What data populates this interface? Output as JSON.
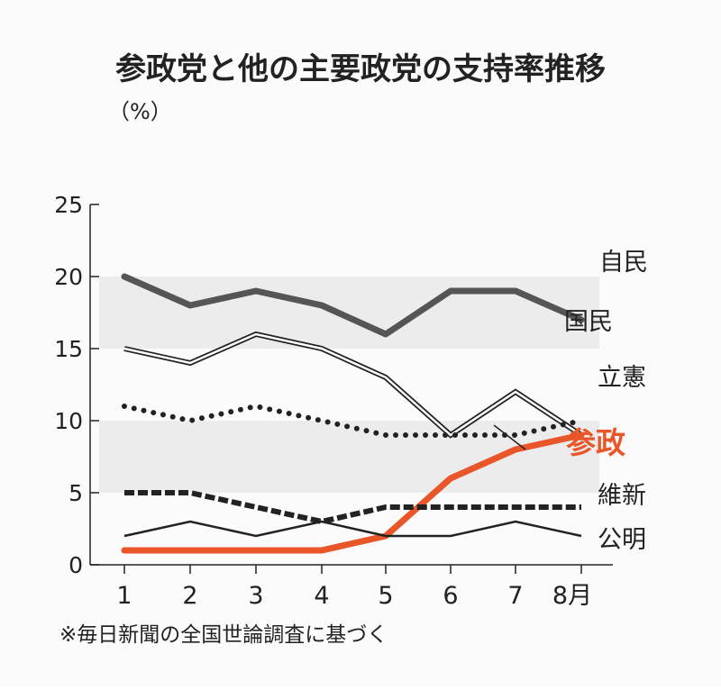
{
  "chart_data": {
    "type": "line",
    "title": "参政党と他の主要政党の支持率推移",
    "ylabel": "（%）",
    "xlabel": "",
    "x_unit": "月",
    "categories": [
      "1",
      "2",
      "3",
      "4",
      "5",
      "6",
      "7",
      "8月"
    ],
    "ylim": [
      0,
      25
    ],
    "yticks": [
      "0",
      "5",
      "10",
      "15",
      "20",
      "25"
    ],
    "bands": [
      [
        5,
        10
      ],
      [
        15,
        20
      ]
    ],
    "series": [
      {
        "name": "自民",
        "values": [
          20,
          18,
          19,
          18,
          16,
          19,
          19,
          17
        ],
        "style": "thick",
        "color": "#555555"
      },
      {
        "name": "国民",
        "values": [
          15,
          14,
          16,
          15,
          13,
          9,
          12,
          9
        ],
        "style": "double",
        "color": "#222222"
      },
      {
        "name": "立憲",
        "values": [
          11,
          10,
          11,
          10,
          9,
          9,
          9,
          10
        ],
        "style": "dotted",
        "color": "#222222"
      },
      {
        "name": "参政",
        "values": [
          1,
          1,
          1,
          1,
          2,
          6,
          8,
          9
        ],
        "style": "thick",
        "color": "#e8562a"
      },
      {
        "name": "維新",
        "values": [
          5,
          5,
          4,
          3,
          4,
          4,
          4,
          4
        ],
        "style": "dashed",
        "color": "#222222"
      },
      {
        "name": "公明",
        "values": [
          2,
          3,
          2,
          3,
          2,
          2,
          3,
          2
        ],
        "style": "thin",
        "color": "#222222"
      }
    ],
    "note": "※毎日新聞の全国世論調査に基づく",
    "grid": false,
    "legend": "inline-right"
  }
}
